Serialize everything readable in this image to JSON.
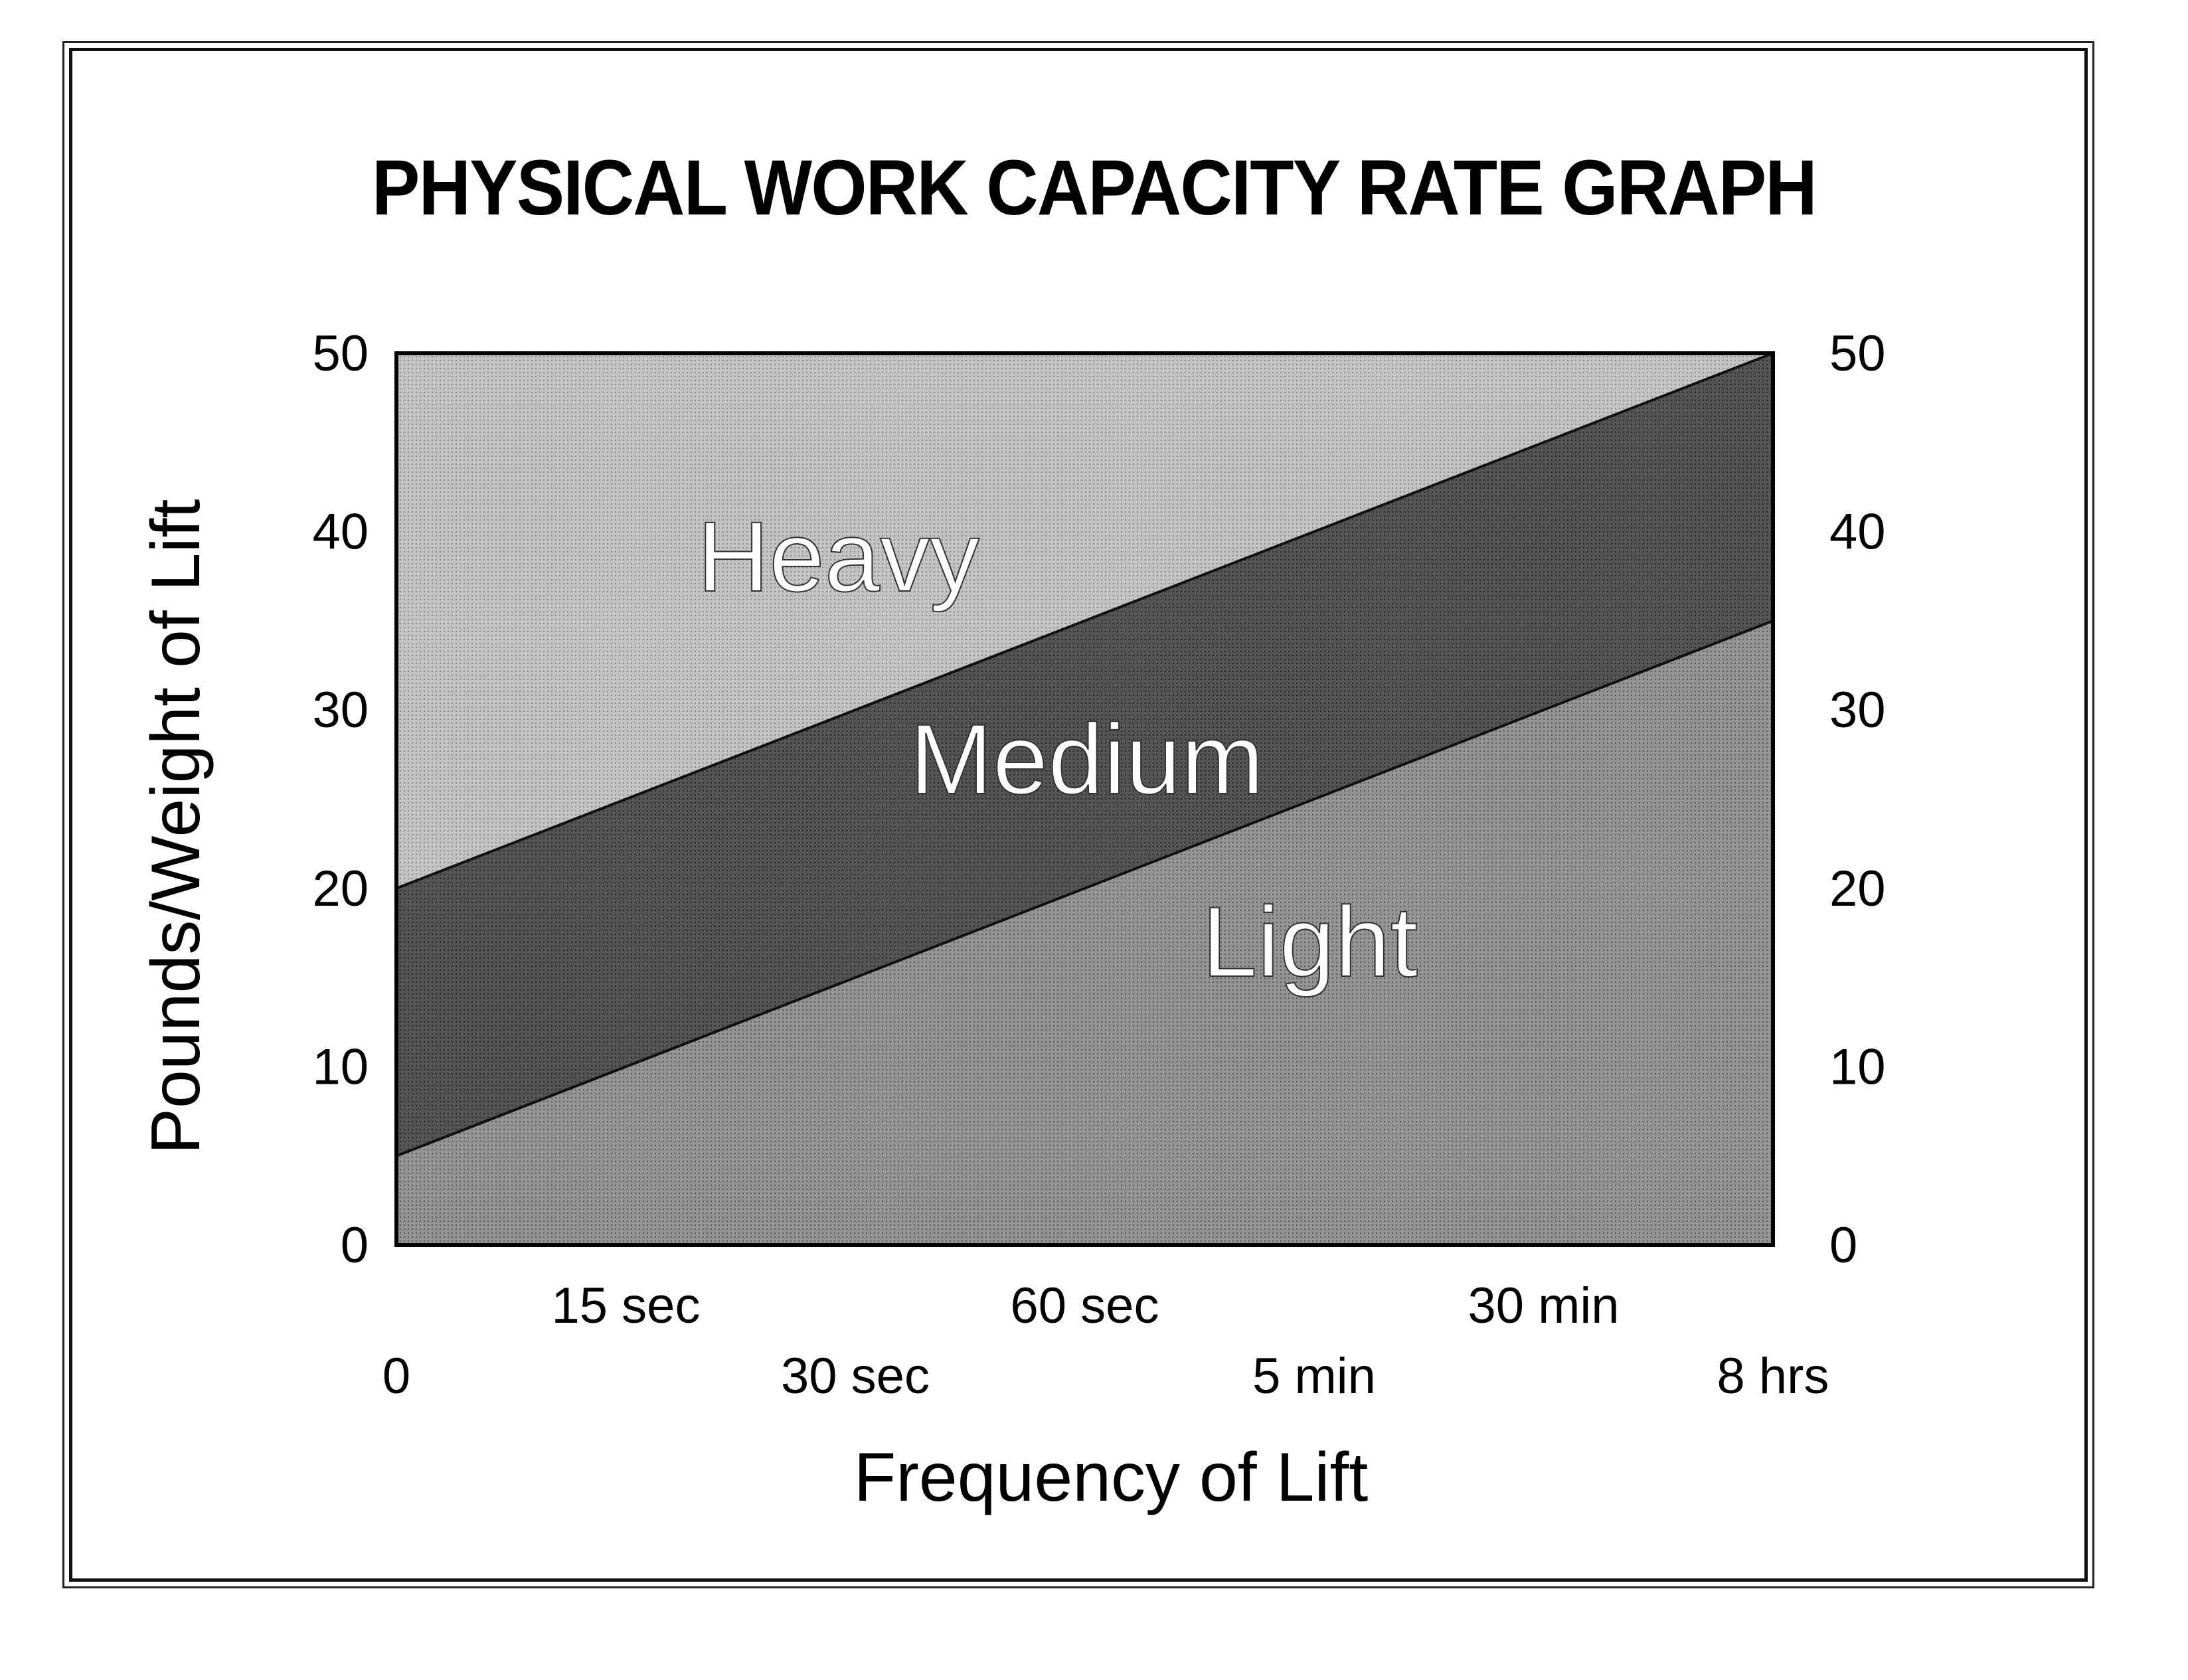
{
  "chart_data": {
    "type": "area",
    "title": "PHYSICAL WORK CAPACITY RATE GRAPH",
    "xlabel": "Frequency of Lift",
    "ylabel": "Pounds/Weight of Lift",
    "ylim": [
      0,
      50
    ],
    "y_ticks": [
      "0",
      "10",
      "20",
      "30",
      "40",
      "50"
    ],
    "x_tick_labels": [
      "0",
      "15 sec",
      "30 sec",
      "60 sec",
      "5 min",
      "30 min",
      "8 hrs"
    ],
    "boundaries": [
      {
        "between": [
          "Light",
          "Medium"
        ],
        "y_start": 5,
        "y_end": 35
      },
      {
        "between": [
          "Medium",
          "Heavy"
        ],
        "y_start": 20,
        "y_end": 50
      }
    ],
    "regions": [
      "Heavy",
      "Medium",
      "Light"
    ],
    "colors": {
      "heavy": "#bdbdbd",
      "medium": "#4d4d4d",
      "light": "#8c8c8c"
    }
  }
}
